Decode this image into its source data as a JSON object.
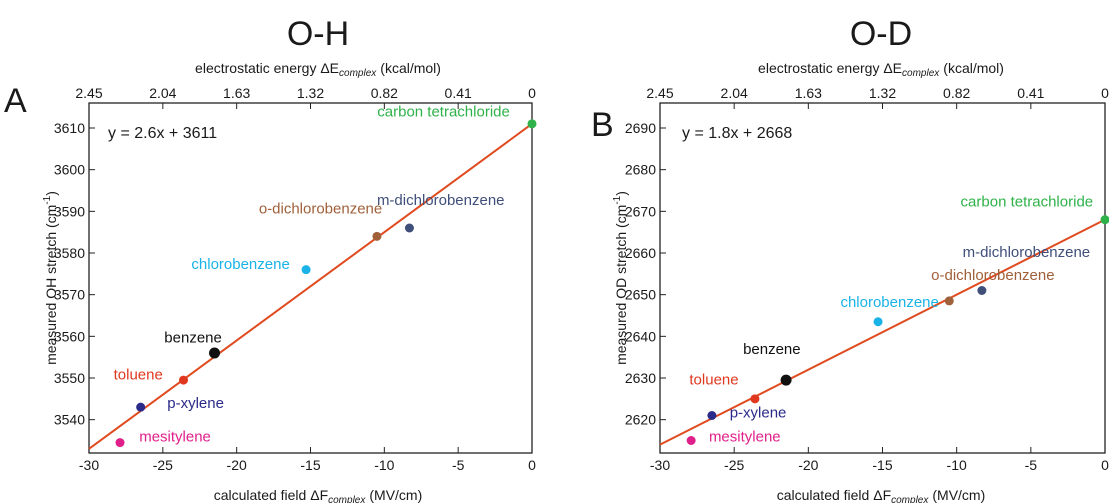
{
  "chart_data": [
    {
      "type": "scatter",
      "panel_letter": "A",
      "title": "O-H",
      "top_axis_label": "electrostatic energy ΔE",
      "top_axis_sub": "complex",
      "top_axis_unit": "(kcal/mol)",
      "top_ticks": [
        "2.45",
        "2.04",
        "1.63",
        "1.32",
        "0.82",
        "0.41",
        "0"
      ],
      "xlabel": "calculated field ΔF",
      "xlabel_sub": "complex",
      "xlabel_unit": "(MV/cm)",
      "ylabel": "measured OH stretch (cm",
      "ylabel_sup": "-1",
      "ylabel_end": ")",
      "xlim": [
        -30,
        0
      ],
      "ylim": [
        3532,
        3616
      ],
      "x_ticks": [
        -30,
        -25,
        -20,
        -15,
        -10,
        -5,
        0
      ],
      "y_ticks": [
        3540,
        3550,
        3560,
        3570,
        3580,
        3590,
        3600,
        3610
      ],
      "fit": {
        "label": "y = 2.6x + 3611",
        "slope": 2.6,
        "intercept": 3611,
        "color": "#e04a1f"
      },
      "points": [
        {
          "name": "carbon tetrachloride",
          "x": 0,
          "y": 3611,
          "color": "#2fb24a",
          "label_color": "#2fb24a"
        },
        {
          "name": "m-dichlorobenzene",
          "x": -8.3,
          "y": 3586,
          "color": "#3f4f7a",
          "label_color": "#3f4f7a"
        },
        {
          "name": "o-dichlorobenzene",
          "x": -10.5,
          "y": 3584,
          "color": "#a0603a",
          "label_color": "#a0603a"
        },
        {
          "name": "chlorobenzene",
          "x": -15.3,
          "y": 3576,
          "color": "#1ab3e8",
          "label_color": "#1ab3e8"
        },
        {
          "name": "benzene",
          "x": -21.5,
          "y": 3556,
          "color": "#111111",
          "label_color": "#111111"
        },
        {
          "name": "toluene",
          "x": -23.6,
          "y": 3549.5,
          "color": "#e0381f",
          "label_color": "#e0381f"
        },
        {
          "name": "p-xylene",
          "x": -26.5,
          "y": 3543,
          "color": "#2a2a8a",
          "label_color": "#2a2a8a"
        },
        {
          "name": "mesitylene",
          "x": -27.9,
          "y": 3534.5,
          "color": "#e0208a",
          "label_color": "#e0208a"
        }
      ]
    },
    {
      "type": "scatter",
      "panel_letter": "B",
      "title": "O-D",
      "top_axis_label": "electrostatic energy ΔE",
      "top_axis_sub": "complex",
      "top_axis_unit": "(kcal/mol)",
      "top_ticks": [
        "2.45",
        "2.04",
        "1.63",
        "1.32",
        "0.82",
        "0.41",
        "0"
      ],
      "xlabel": "calculated field ΔF",
      "xlabel_sub": "complex",
      "xlabel_unit": "(MV/cm)",
      "ylabel": "measured OD stretch (cm",
      "ylabel_sup": "-1",
      "ylabel_end": ")",
      "xlim": [
        -30,
        0
      ],
      "ylim": [
        2612,
        2696
      ],
      "x_ticks": [
        -30,
        -25,
        -20,
        -15,
        -10,
        -5,
        0
      ],
      "y_ticks": [
        2620,
        2630,
        2640,
        2650,
        2660,
        2670,
        2680,
        2690
      ],
      "fit": {
        "label": "y = 1.8x + 2668",
        "slope": 1.8,
        "intercept": 2668,
        "color": "#e04a1f"
      },
      "points": [
        {
          "name": "carbon tetrachloride",
          "x": 0,
          "y": 2668,
          "color": "#2fb24a",
          "label_color": "#2fb24a"
        },
        {
          "name": "m-dichlorobenzene",
          "x": -8.3,
          "y": 2651,
          "color": "#3f4f7a",
          "label_color": "#3f4f7a"
        },
        {
          "name": "o-dichlorobenzene",
          "x": -10.5,
          "y": 2648.5,
          "color": "#a0603a",
          "label_color": "#a0603a"
        },
        {
          "name": "chlorobenzene",
          "x": -15.3,
          "y": 2643.5,
          "color": "#1ab3e8",
          "label_color": "#1ab3e8"
        },
        {
          "name": "benzene",
          "x": -21.5,
          "y": 2629.5,
          "color": "#111111",
          "label_color": "#111111"
        },
        {
          "name": "toluene",
          "x": -23.6,
          "y": 2625,
          "color": "#e0381f",
          "label_color": "#e0381f"
        },
        {
          "name": "p-xylene",
          "x": -26.5,
          "y": 2621,
          "color": "#2a2a8a",
          "label_color": "#2a2a8a"
        },
        {
          "name": "mesitylene",
          "x": -27.9,
          "y": 2615,
          "color": "#e0208a",
          "label_color": "#e0208a"
        }
      ]
    }
  ]
}
